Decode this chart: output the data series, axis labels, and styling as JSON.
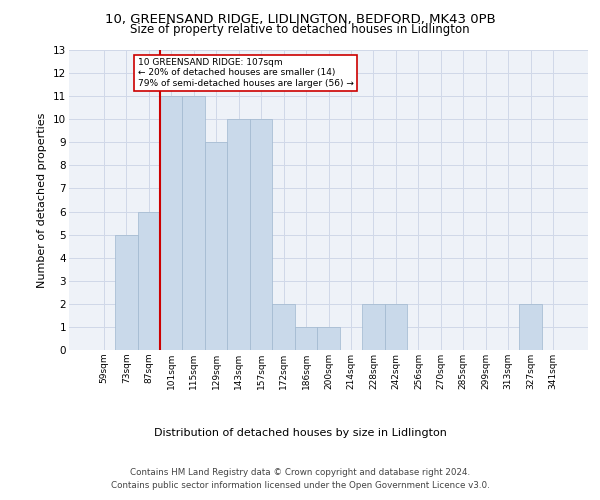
{
  "title_line1": "10, GREENSAND RIDGE, LIDLINGTON, BEDFORD, MK43 0PB",
  "title_line2": "Size of property relative to detached houses in Lidlington",
  "xlabel": "Distribution of detached houses by size in Lidlington",
  "ylabel": "Number of detached properties",
  "categories": [
    "59sqm",
    "73sqm",
    "87sqm",
    "101sqm",
    "115sqm",
    "129sqm",
    "143sqm",
    "157sqm",
    "172sqm",
    "186sqm",
    "200sqm",
    "214sqm",
    "228sqm",
    "242sqm",
    "256sqm",
    "270sqm",
    "285sqm",
    "299sqm",
    "313sqm",
    "327sqm",
    "341sqm"
  ],
  "values": [
    0,
    5,
    6,
    11,
    11,
    9,
    10,
    10,
    2,
    1,
    1,
    0,
    2,
    2,
    0,
    0,
    0,
    0,
    0,
    2,
    0
  ],
  "bar_color": "#c9d9ea",
  "bar_edge_color": "#a0b8cf",
  "grid_color": "#d0d8e8",
  "background_color": "#eef2f8",
  "annotation_text_line1": "10 GREENSAND RIDGE: 107sqm",
  "annotation_text_line2": "← 20% of detached houses are smaller (14)",
  "annotation_text_line3": "79% of semi-detached houses are larger (56) →",
  "annotation_box_color": "#ffffff",
  "annotation_box_edge": "#cc0000",
  "vline_color": "#cc0000",
  "vline_x_index": 3,
  "ylim": [
    0,
    13
  ],
  "yticks": [
    0,
    1,
    2,
    3,
    4,
    5,
    6,
    7,
    8,
    9,
    10,
    11,
    12,
    13
  ],
  "footer_line1": "Contains HM Land Registry data © Crown copyright and database right 2024.",
  "footer_line2": "Contains public sector information licensed under the Open Government Licence v3.0."
}
